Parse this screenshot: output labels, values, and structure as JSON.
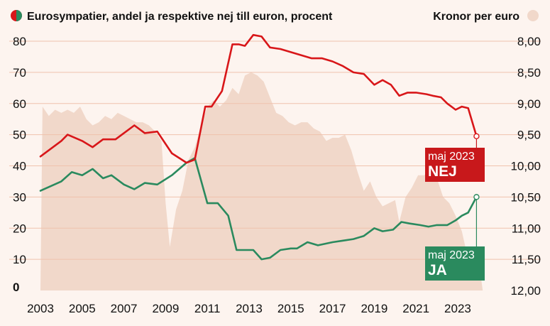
{
  "header": {
    "left_title": "Eurosympatier, andel ja respektive nej till euron, procent",
    "right_title": "Kronor per euro"
  },
  "colors": {
    "background": "#fdf4ef",
    "area": "#f1d8ca",
    "gridline": "#f0c2ad",
    "nej": "#d81619",
    "ja": "#2a8a5e",
    "nej_box": "#c8181b",
    "ja_box": "#2a8a5e"
  },
  "chart_data": {
    "type": "line",
    "title": "Eurosympatier, andel ja respektive nej till euron, procent",
    "secondary_title": "Kronor per euro",
    "xlabel": "",
    "ylabel": "",
    "xlim": [
      2003,
      2024.6
    ],
    "ylim": [
      0,
      80
    ],
    "y_ticks": [
      {
        "value": 0,
        "label": "0"
      },
      {
        "value": 10,
        "label": "10"
      },
      {
        "value": 20,
        "label": "20"
      },
      {
        "value": 30,
        "label": "30"
      },
      {
        "value": 40,
        "label": "40"
      },
      {
        "value": 50,
        "label": "50"
      },
      {
        "value": 60,
        "label": "60"
      },
      {
        "value": 70,
        "label": "70"
      },
      {
        "value": 80,
        "label": "80"
      }
    ],
    "y2_axis": {
      "inverted": true,
      "ylim": [
        8.0,
        12.0
      ],
      "ticks": [
        {
          "value": 8.0,
          "label": "8,00"
        },
        {
          "value": 8.5,
          "label": "8,50"
        },
        {
          "value": 9.0,
          "label": "9,00"
        },
        {
          "value": 9.5,
          "label": "9,50"
        },
        {
          "value": 10.0,
          "label": "10,00"
        },
        {
          "value": 10.5,
          "label": "10,50"
        },
        {
          "value": 11.0,
          "label": "11,00"
        },
        {
          "value": 11.5,
          "label": "11,50"
        },
        {
          "value": 12.0,
          "label": "12,00"
        }
      ]
    },
    "x_ticks": [
      {
        "value": 2003,
        "label": "2003"
      },
      {
        "value": 2005,
        "label": "2005"
      },
      {
        "value": 2007,
        "label": "2007"
      },
      {
        "value": 2009,
        "label": "2009"
      },
      {
        "value": 2011,
        "label": "2011"
      },
      {
        "value": 2013,
        "label": "2013"
      },
      {
        "value": 2015,
        "label": "2015"
      },
      {
        "value": 2017,
        "label": "2017"
      },
      {
        "value": 2019,
        "label": "2019"
      },
      {
        "value": 2021,
        "label": "2021"
      },
      {
        "value": 2023,
        "label": "2023"
      }
    ],
    "grid": true,
    "legend": "inline-labels",
    "series": [
      {
        "name": "NEJ",
        "axis": "left",
        "x": [
          2003.0,
          2004.0,
          2004.3,
          2005.0,
          2005.5,
          2006.0,
          2006.6,
          2007.0,
          2007.5,
          2008.0,
          2008.6,
          2009.3,
          2010.0,
          2010.4,
          2010.9,
          2011.2,
          2011.7,
          2012.2,
          2012.5,
          2012.8,
          2013.2,
          2013.6,
          2014.0,
          2014.5,
          2015.0,
          2015.5,
          2016.0,
          2016.5,
          2017.0,
          2017.5,
          2018.0,
          2018.5,
          2019.0,
          2019.4,
          2019.8,
          2020.2,
          2020.6,
          2021.0,
          2021.5,
          2021.8,
          2022.2,
          2022.5,
          2022.9,
          2023.2,
          2023.5,
          2023.9
        ],
        "values": [
          43,
          48,
          50,
          48,
          46,
          48.5,
          48.5,
          50.5,
          53,
          50.5,
          51,
          44,
          41,
          42,
          59,
          59,
          64,
          79,
          79,
          78.5,
          82,
          81.5,
          78,
          77.5,
          76.5,
          75.5,
          74.5,
          74.5,
          73.5,
          72,
          70,
          69.5,
          66,
          67.5,
          66,
          62.5,
          63.5,
          63.5,
          63,
          62.5,
          62,
          60,
          58,
          59,
          58.5,
          49.5
        ]
      },
      {
        "name": "JA",
        "axis": "left",
        "x": [
          2003.0,
          2004.0,
          2004.5,
          2005.0,
          2005.5,
          2006.0,
          2006.4,
          2007.0,
          2007.5,
          2008.0,
          2008.6,
          2009.3,
          2010.0,
          2010.4,
          2011.0,
          2011.5,
          2012.0,
          2012.4,
          2012.8,
          2013.2,
          2013.6,
          2014.0,
          2014.5,
          2015.0,
          2015.3,
          2015.8,
          2016.3,
          2017.0,
          2017.5,
          2018.0,
          2018.5,
          2019.0,
          2019.4,
          2019.9,
          2020.3,
          2020.7,
          2021.2,
          2021.6,
          2022.0,
          2022.5,
          2022.9,
          2023.2,
          2023.5,
          2023.9
        ],
        "values": [
          32,
          35,
          38,
          37,
          39,
          36,
          37,
          34,
          32.5,
          34.5,
          34,
          37,
          41,
          42.5,
          28,
          28,
          24,
          13,
          13,
          13,
          10,
          10.5,
          13,
          13.5,
          13.5,
          15.5,
          14.5,
          15.5,
          16,
          16.5,
          17.5,
          20,
          19,
          19.5,
          22,
          21.5,
          21,
          20.5,
          21,
          21,
          22.5,
          24,
          25,
          30
        ]
      },
      {
        "name": "Kronor per euro",
        "axis": "right",
        "kind": "area",
        "x": [
          2003.0,
          2003.1,
          2003.4,
          2003.7,
          2004.0,
          2004.3,
          2004.6,
          2004.9,
          2005.2,
          2005.5,
          2005.8,
          2006.1,
          2006.4,
          2006.7,
          2007.0,
          2007.3,
          2007.6,
          2007.9,
          2008.2,
          2008.5,
          2008.8,
          2009.0,
          2009.2,
          2009.5,
          2009.8,
          2010.1,
          2010.4,
          2010.7,
          2011.0,
          2011.3,
          2011.6,
          2011.9,
          2012.2,
          2012.5,
          2012.8,
          2013.1,
          2013.4,
          2013.7,
          2014.0,
          2014.3,
          2014.6,
          2014.9,
          2015.2,
          2015.5,
          2015.8,
          2016.1,
          2016.4,
          2016.7,
          2017.0,
          2017.3,
          2017.6,
          2017.9,
          2018.2,
          2018.5,
          2018.8,
          2019.1,
          2019.4,
          2019.7,
          2020.0,
          2020.2,
          2020.5,
          2020.8,
          2021.1,
          2021.4,
          2021.7,
          2022.0,
          2022.3,
          2022.6,
          2022.9,
          2023.2,
          2023.4,
          2023.6,
          2023.8,
          2024.0,
          2024.2
        ],
        "values": [
          12.0,
          9.05,
          9.2,
          9.1,
          9.15,
          9.1,
          9.15,
          9.05,
          9.25,
          9.35,
          9.3,
          9.2,
          9.25,
          9.15,
          9.2,
          9.25,
          9.3,
          9.3,
          9.35,
          9.45,
          9.6,
          10.6,
          11.3,
          10.7,
          10.4,
          9.9,
          9.7,
          9.35,
          9.05,
          8.95,
          9.05,
          8.95,
          8.75,
          8.85,
          8.55,
          8.5,
          8.55,
          8.65,
          8.9,
          9.15,
          9.2,
          9.3,
          9.35,
          9.3,
          9.3,
          9.4,
          9.45,
          9.6,
          9.55,
          9.55,
          9.5,
          9.75,
          10.1,
          10.4,
          10.25,
          10.5,
          10.65,
          10.6,
          10.55,
          10.9,
          10.5,
          10.35,
          10.15,
          10.15,
          10.05,
          10.2,
          10.5,
          10.6,
          10.8,
          11.05,
          11.35,
          11.5,
          11.45,
          11.5,
          12.0
        ]
      }
    ],
    "annotations": [
      {
        "series": "NEJ",
        "line1": "maj 2023",
        "line2": "NEJ"
      },
      {
        "series": "JA",
        "line1": "maj 2023",
        "line2": "JA"
      }
    ]
  }
}
